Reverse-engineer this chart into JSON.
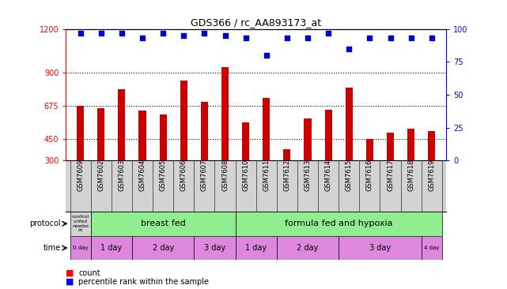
{
  "title": "GDS366 / rc_AA893173_at",
  "samples": [
    "GSM7609",
    "GSM7602",
    "GSM7603",
    "GSM7604",
    "GSM7605",
    "GSM7606",
    "GSM7607",
    "GSM7608",
    "GSM7610",
    "GSM7611",
    "GSM7612",
    "GSM7613",
    "GSM7614",
    "GSM7615",
    "GSM7616",
    "GSM7617",
    "GSM7618",
    "GSM7619"
  ],
  "counts": [
    675,
    660,
    790,
    640,
    615,
    845,
    700,
    940,
    560,
    730,
    380,
    590,
    650,
    800,
    450,
    490,
    520,
    500
  ],
  "percentiles": [
    97,
    97,
    97,
    93,
    97,
    95,
    97,
    95,
    93,
    80,
    93,
    93,
    97,
    85,
    93,
    93,
    93,
    93
  ],
  "ymin": 300,
  "ymax": 1200,
  "yticks": [
    300,
    450,
    675,
    900,
    1200
  ],
  "right_yticks": [
    0,
    25,
    50,
    75,
    100
  ],
  "bar_color": "#cc0000",
  "dot_color": "#0000cc",
  "plot_bg": "#ffffff",
  "xtick_bg": "#d3d3d3",
  "protocol_colors": {
    "control": "#d3d3d3",
    "breast_fed": "#90ee90",
    "formula": "#90ee90"
  },
  "time_color": "#dd88dd",
  "gridline_color": "black",
  "protocol_blocks": [
    {
      "label": "control\nunfed\nnewbo\nrn",
      "color": "#d3d3d3",
      "start": 0,
      "end": 1,
      "fontsize": 4.5
    },
    {
      "label": "breast fed",
      "color": "#90ee90",
      "start": 1,
      "end": 8,
      "fontsize": 8
    },
    {
      "label": "formula fed and hypoxia",
      "color": "#90ee90",
      "start": 8,
      "end": 18,
      "fontsize": 8
    }
  ],
  "time_blocks": [
    {
      "label": "0 day",
      "start": 0,
      "end": 1,
      "fontsize": 5
    },
    {
      "label": "1 day",
      "start": 1,
      "end": 3,
      "fontsize": 7
    },
    {
      "label": "2 day",
      "start": 3,
      "end": 6,
      "fontsize": 7
    },
    {
      "label": "3 day",
      "start": 6,
      "end": 8,
      "fontsize": 7
    },
    {
      "label": "1 day",
      "start": 8,
      "end": 10,
      "fontsize": 7
    },
    {
      "label": "2 day",
      "start": 10,
      "end": 13,
      "fontsize": 7
    },
    {
      "label": "3 day",
      "start": 13,
      "end": 17,
      "fontsize": 7
    },
    {
      "label": "4 day",
      "start": 17,
      "end": 18,
      "fontsize": 5
    }
  ]
}
